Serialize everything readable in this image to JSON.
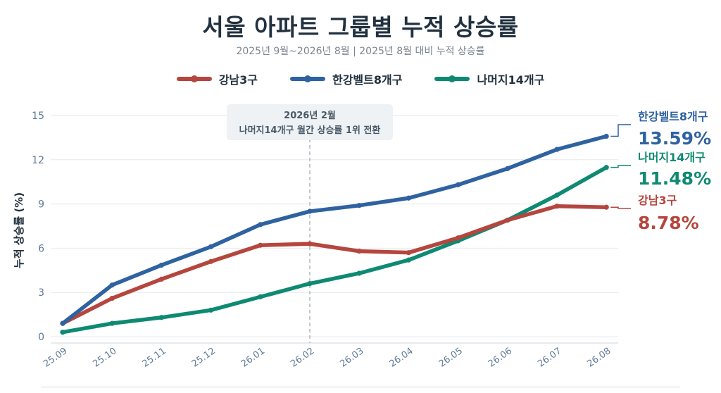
{
  "title": "서울 아파트 그룹별 누적 상승률",
  "subtitle": "2025년 9월~2026년 8월  |  2025년 8월 대비 누적 상승률",
  "colors": {
    "gangnam": "#b5463e",
    "hangang": "#2f62a0",
    "others": "#0f8a72",
    "text": "#22313f",
    "axis": "#5f7a96",
    "grid": "#e6e9ec"
  },
  "annotation": {
    "line1": "2026년 2월",
    "line2": "나머지14개구 월간 상승률 1위 전환",
    "x_category": "26.02"
  },
  "chart_data": {
    "type": "line",
    "title": "서울 아파트 그룹별 누적 상승률",
    "subtitle": "2025년 9월~2026년 8월  |  2025년 8월 대비 누적 상승률",
    "xlabel": "",
    "ylabel": "누적 상승률 (%)",
    "ylim": [
      0,
      15
    ],
    "yticks": [
      0,
      3,
      6,
      9,
      12,
      15
    ],
    "grid": true,
    "legend_position": "top-center",
    "categories": [
      "25.09",
      "25.10",
      "25.11",
      "25.12",
      "26.01",
      "26.02",
      "26.03",
      "26.04",
      "26.05",
      "26.06",
      "26.07",
      "26.08"
    ],
    "series": [
      {
        "key": "gangnam",
        "name": "강남3구",
        "color": "#b5463e",
        "values": [
          0.9,
          2.6,
          3.9,
          5.1,
          6.2,
          6.3,
          5.8,
          5.7,
          6.7,
          7.9,
          8.85,
          8.78
        ],
        "end_label": "8.78%"
      },
      {
        "key": "hangang",
        "name": "한강벨트8개구",
        "color": "#2f62a0",
        "values": [
          0.9,
          3.5,
          4.85,
          6.1,
          7.6,
          8.5,
          8.9,
          9.4,
          10.3,
          11.4,
          12.7,
          13.59
        ],
        "end_label": "13.59%"
      },
      {
        "key": "others",
        "name": "나머지14개구",
        "color": "#0f8a72",
        "values": [
          0.3,
          0.9,
          1.3,
          1.8,
          2.7,
          3.6,
          4.3,
          5.2,
          6.5,
          7.9,
          9.6,
          11.48
        ],
        "end_label": "11.48%"
      }
    ]
  }
}
